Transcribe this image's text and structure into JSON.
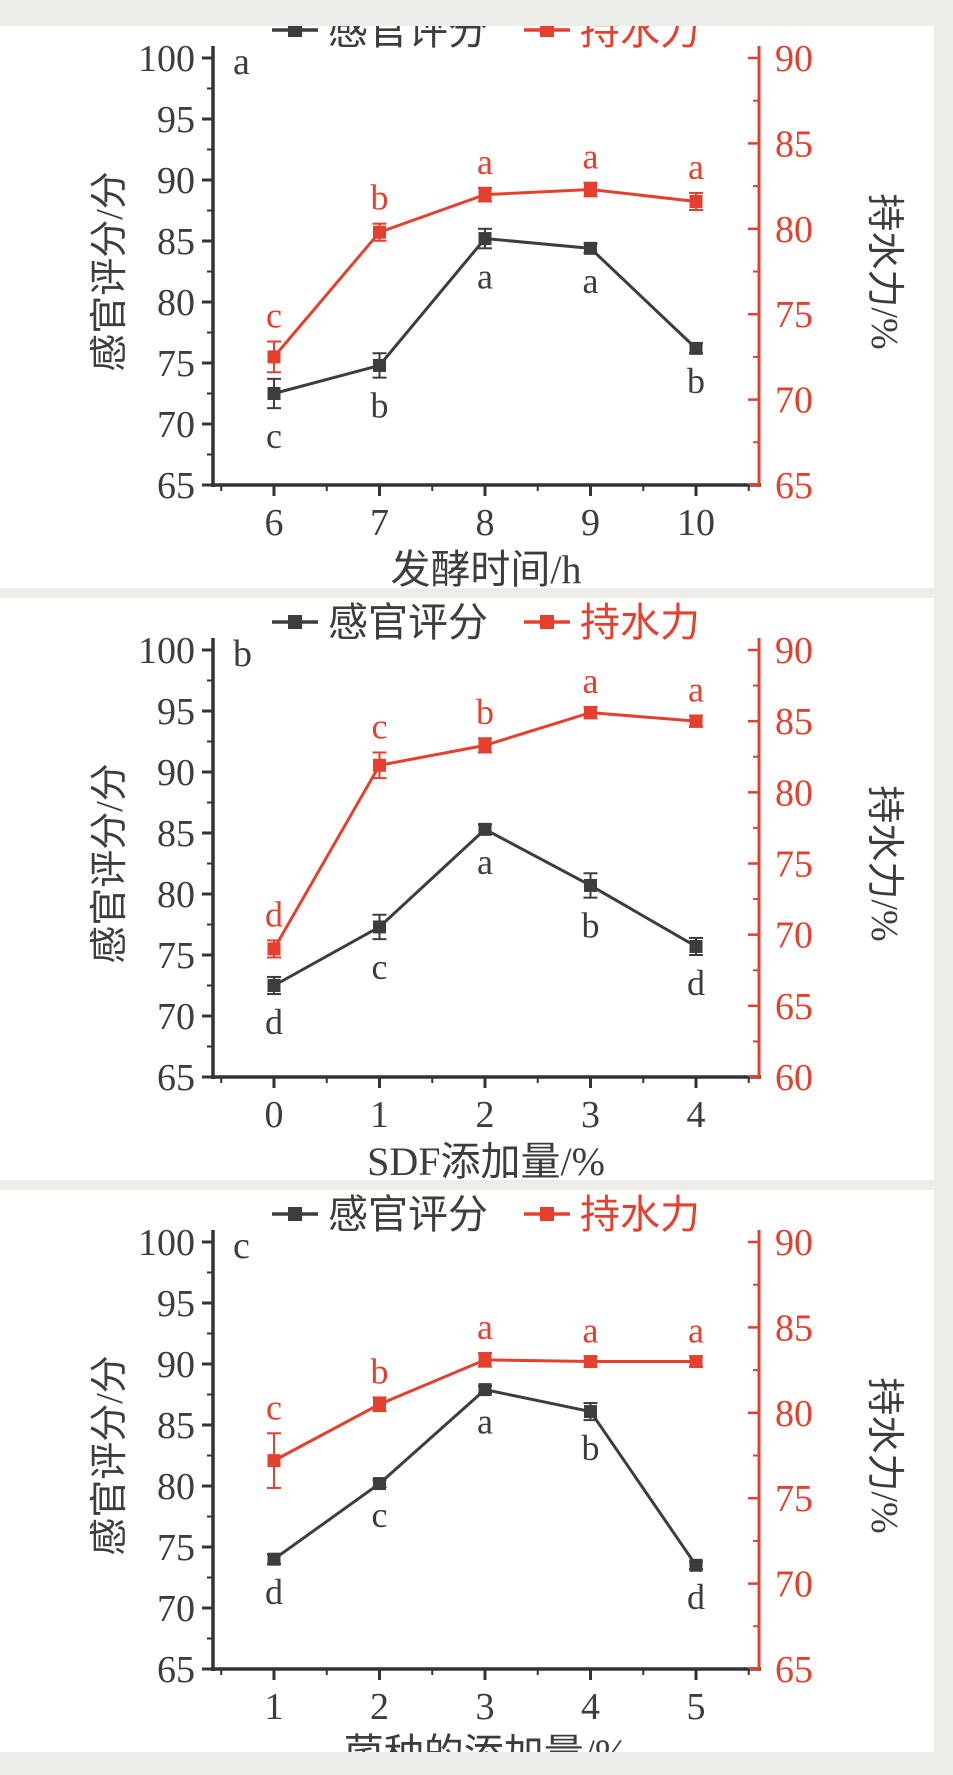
{
  "figure": {
    "colors": {
      "sensory": "#3d3d3d",
      "whc": "#e5402e",
      "axis": "#333333",
      "background": "#ffffff",
      "page_margin": "#ecece9"
    },
    "legend": {
      "sensory_label": "感官评分",
      "whc_label": "持水力"
    },
    "left_axis_title": "感官评分/分",
    "right_axis_title": "持水力/%"
  },
  "chart_data": [
    {
      "type": "line",
      "panel_label": "a",
      "xlabel": "发酵时间/h",
      "x": [
        "6",
        "7",
        "8",
        "9",
        "10"
      ],
      "left_axis": {
        "title": "感官评分/分",
        "min": 65,
        "max": 100,
        "tick_step": 5,
        "ticks": [
          65,
          70,
          75,
          80,
          85,
          90,
          95,
          100
        ]
      },
      "right_axis": {
        "title": "持水力/%",
        "min": 65,
        "max": 90,
        "tick_step": 5,
        "ticks": [
          65,
          70,
          75,
          80,
          85,
          90
        ]
      },
      "legend": [
        "感官评分",
        "持水力"
      ],
      "legend_position": "top-center",
      "grid": false,
      "series": [
        {
          "name": "感官评分",
          "axis": "left",
          "color": "#3d3d3d",
          "values": [
            72.5,
            74.8,
            85.2,
            84.4,
            76.2
          ],
          "errors": [
            1.2,
            1.0,
            0.8,
            0.4,
            0.4
          ],
          "sig_labels": [
            "c",
            "b",
            "a",
            "a",
            "b"
          ],
          "sig_label_side": "below"
        },
        {
          "name": "持水力",
          "axis": "right",
          "color": "#e5402e",
          "values": [
            72.5,
            79.8,
            82.0,
            82.3,
            81.6
          ],
          "errors": [
            0.9,
            0.5,
            0.4,
            0.4,
            0.5
          ],
          "sig_labels": [
            "c",
            "b",
            "a",
            "a",
            "a"
          ],
          "sig_label_side": "above"
        }
      ]
    },
    {
      "type": "line",
      "panel_label": "b",
      "xlabel": "SDF添加量/%",
      "x": [
        "0",
        "1",
        "2",
        "3",
        "4"
      ],
      "left_axis": {
        "title": "感官评分/分",
        "min": 65,
        "max": 100,
        "tick_step": 5,
        "ticks": [
          65,
          70,
          75,
          80,
          85,
          90,
          95,
          100
        ]
      },
      "right_axis": {
        "title": "持水力/%",
        "min": 60,
        "max": 90,
        "tick_step": 5,
        "ticks": [
          60,
          65,
          70,
          75,
          80,
          85,
          90
        ]
      },
      "legend": [
        "感官评分",
        "持水力"
      ],
      "legend_position": "top-center",
      "grid": false,
      "series": [
        {
          "name": "感官评分",
          "axis": "left",
          "color": "#3d3d3d",
          "values": [
            72.5,
            77.3,
            85.3,
            80.7,
            75.7
          ],
          "errors": [
            0.7,
            1.0,
            0.4,
            1.0,
            0.7
          ],
          "sig_labels": [
            "d",
            "c",
            "a",
            "b",
            "d"
          ],
          "sig_label_side": "below"
        },
        {
          "name": "持水力",
          "axis": "right",
          "color": "#e5402e",
          "values": [
            69.0,
            81.9,
            83.3,
            85.6,
            85.0
          ],
          "errors": [
            0.6,
            0.9,
            0.5,
            0.4,
            0.4
          ],
          "sig_labels": [
            "d",
            "c",
            "b",
            "a",
            "a"
          ],
          "sig_label_side": "above"
        }
      ]
    },
    {
      "type": "line",
      "panel_label": "c",
      "xlabel": "菌种的添加量/%",
      "x": [
        "1",
        "2",
        "3",
        "4",
        "5"
      ],
      "left_axis": {
        "title": "感官评分/分",
        "min": 65,
        "max": 100,
        "tick_step": 5,
        "ticks": [
          65,
          70,
          75,
          80,
          85,
          90,
          95,
          100
        ]
      },
      "right_axis": {
        "title": "持水力/%",
        "min": 65,
        "max": 90,
        "tick_step": 5,
        "ticks": [
          65,
          70,
          75,
          80,
          85,
          90
        ]
      },
      "legend": [
        "感官评分",
        "持水力"
      ],
      "legend_position": "top-center",
      "grid": false,
      "series": [
        {
          "name": "感官评分",
          "axis": "left",
          "color": "#3d3d3d",
          "values": [
            74.0,
            80.2,
            87.9,
            86.1,
            73.5
          ],
          "errors": [
            0.4,
            0.3,
            0.3,
            0.7,
            0.3
          ],
          "sig_labels": [
            "d",
            "c",
            "a",
            "b",
            "d"
          ],
          "sig_label_side": "below"
        },
        {
          "name": "持水力",
          "axis": "right",
          "color": "#e5402e",
          "values": [
            77.2,
            80.5,
            83.1,
            83.0,
            83.0
          ],
          "errors": [
            1.6,
            0.4,
            0.4,
            0.3,
            0.3
          ],
          "sig_labels": [
            "c",
            "b",
            "a",
            "a",
            "a"
          ],
          "sig_label_side": "above"
        }
      ]
    }
  ]
}
